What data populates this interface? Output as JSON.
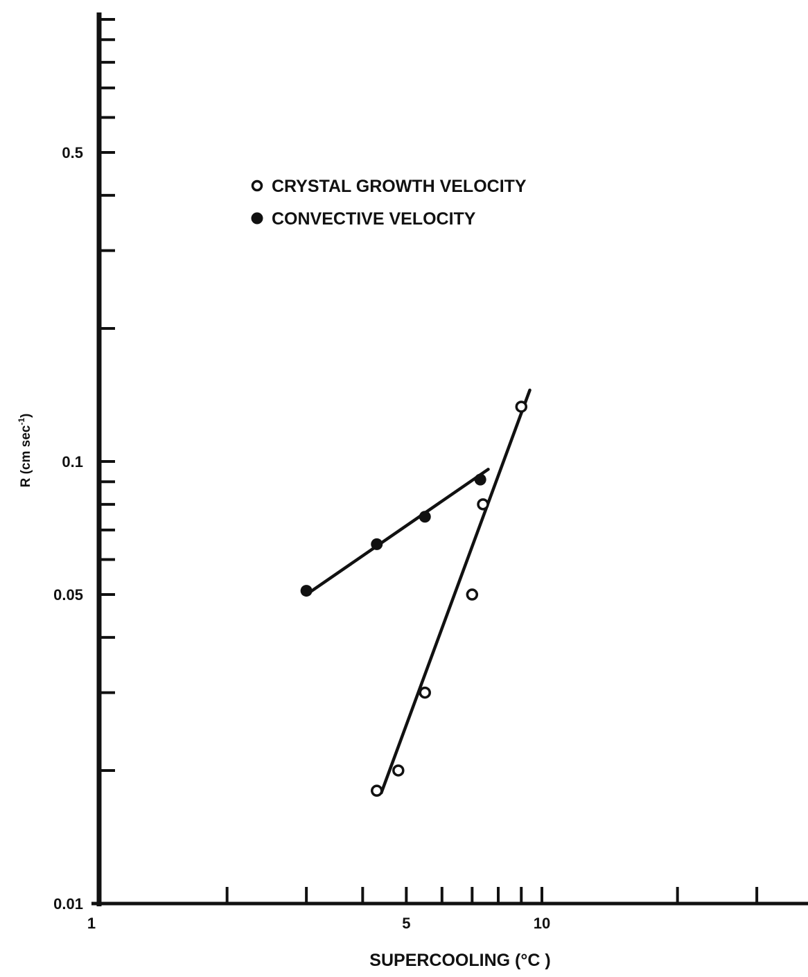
{
  "chart_data": {
    "type": "scatter",
    "title": "",
    "xlabel": "SUPERCOOLING (°C )",
    "ylabel": "R (cm sec",
    "ylabel_superscript": "-1",
    "ylabel_close": ")",
    "x_scale": "log",
    "y_scale": "log",
    "xlim": [
      1,
      30
    ],
    "ylim": [
      0.01,
      1.0
    ],
    "grid": false,
    "legend_placement": "top-center",
    "x_tick_values": [
      2,
      3,
      4,
      5,
      6,
      7,
      8,
      9,
      10,
      20,
      30
    ],
    "x_tick_labels": [
      {
        "value": 1,
        "label": "1"
      },
      {
        "value": 5,
        "label": "5"
      },
      {
        "value": 10,
        "label": "10"
      }
    ],
    "y_tick_values": [
      0.02,
      0.03,
      0.04,
      0.05,
      0.06,
      0.07,
      0.08,
      0.09,
      0.1,
      0.2,
      0.3,
      0.4,
      0.5,
      0.6,
      0.7,
      0.8,
      0.9,
      1.0
    ],
    "y_tick_labels": [
      {
        "value": 0.01,
        "label": "0.01"
      },
      {
        "value": 0.05,
        "label": "0.05"
      },
      {
        "value": 0.1,
        "label": "0.1"
      },
      {
        "value": 0.5,
        "label": "0.5"
      }
    ],
    "series": [
      {
        "name": "CRYSTAL GROWTH VELOCITY",
        "marker": "open-circle",
        "x": [
          4.3,
          4.8,
          5.5,
          7.0,
          7.4,
          9.0
        ],
        "y": [
          0.018,
          0.02,
          0.03,
          0.05,
          0.08,
          0.133
        ],
        "fit_line": {
          "x": [
            4.4,
            9.4
          ],
          "y": [
            0.0178,
            0.145
          ]
        }
      },
      {
        "name": "CONVECTIVE VELOCITY",
        "marker": "filled-circle",
        "x": [
          3.0,
          4.3,
          5.5,
          7.3
        ],
        "y": [
          0.051,
          0.065,
          0.075,
          0.091
        ],
        "fit_line": {
          "x": [
            3.0,
            7.6
          ],
          "y": [
            0.05,
            0.096
          ]
        }
      }
    ]
  }
}
